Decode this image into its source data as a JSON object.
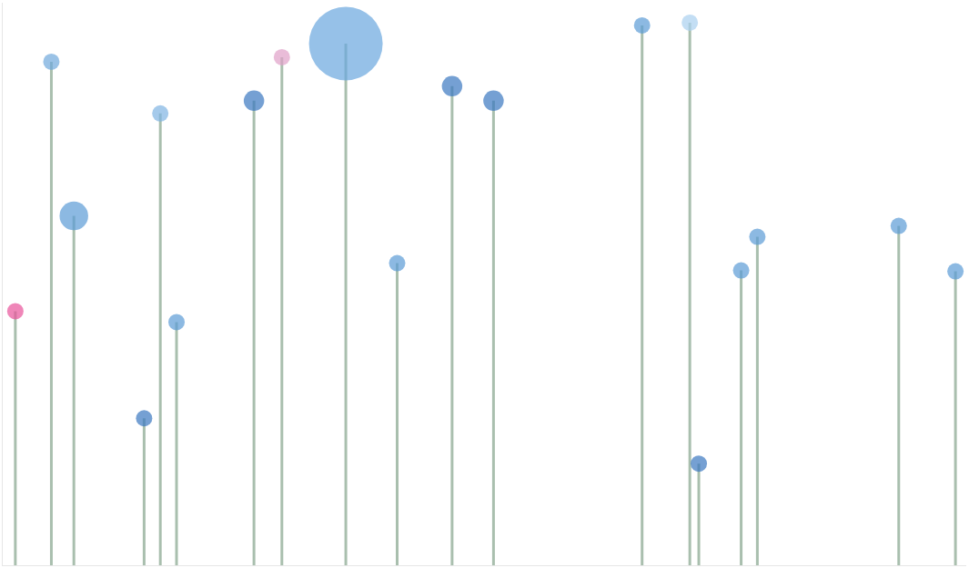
{
  "chart_data": {
    "type": "lollipop",
    "x": [
      14,
      54,
      79,
      157,
      175,
      193,
      279,
      310,
      381,
      438,
      499,
      545,
      710,
      763,
      773,
      820,
      838,
      995,
      1058
    ],
    "values": [
      280,
      555,
      385,
      162,
      498,
      268,
      512,
      560,
      575,
      333,
      528,
      512,
      595,
      598,
      112,
      325,
      362,
      374,
      324
    ],
    "sizes": [
      2,
      2,
      3.5,
      2,
      2,
      2,
      2.5,
      2,
      9,
      2,
      2.5,
      2.5,
      2,
      2,
      2,
      2,
      2,
      2,
      2
    ],
    "colors": [
      "#e8529a",
      "#6fa8dc",
      "#5b9bd5",
      "#3a78c0",
      "#7fb3e3",
      "#5b9bd5",
      "#3a78c0",
      "#e0a0c8",
      "#6aa6de",
      "#5b9bd5",
      "#3a78c0",
      "#3a78c0",
      "#5b9bd5",
      "#a9d0f0",
      "#3a78c0",
      "#5b9bd5",
      "#5b9bd5",
      "#5b9bd5",
      "#5b9bd5"
    ],
    "line_color": "#a9bfae",
    "marker": "circle",
    "xlim": [
      0,
      1070
    ],
    "ylim": [
      0,
      620
    ],
    "xticks": [],
    "yticks": [],
    "grid": false,
    "tick_labels": false
  }
}
